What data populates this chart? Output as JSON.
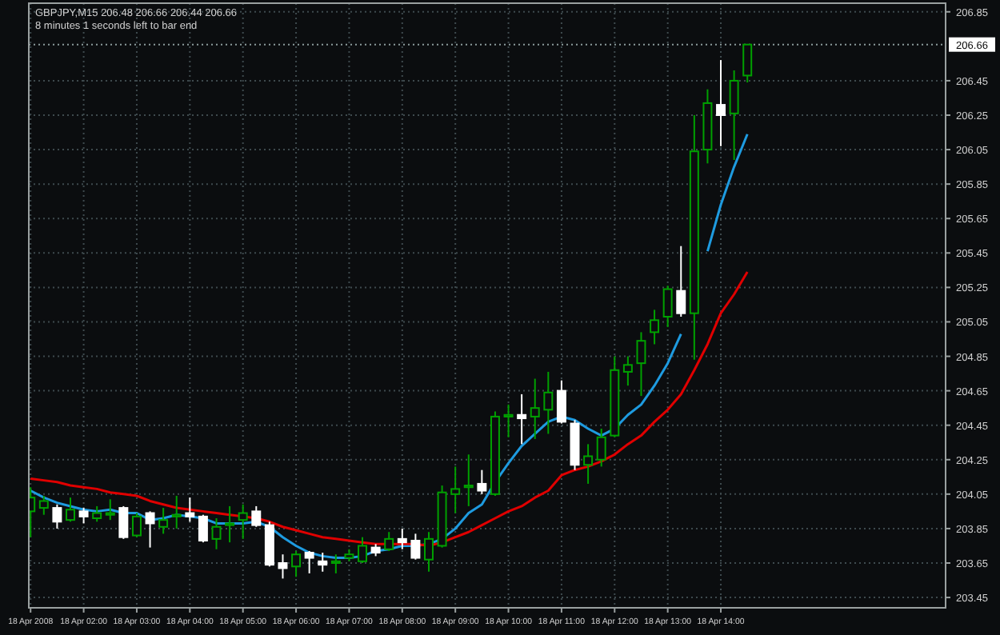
{
  "chart_data": {
    "type": "candlestick",
    "title": "GBPJPY,M15  206.48 206.66 206.44 206.66",
    "subtitle": "8 minutes 1 seconds left to bar end",
    "x": [
      "2008-04-18T01:00",
      "2008-04-18T01:15",
      "2008-04-18T01:30",
      "2008-04-18T01:45",
      "2008-04-18T02:00",
      "2008-04-18T02:15",
      "2008-04-18T02:30",
      "2008-04-18T02:45",
      "2008-04-18T03:00",
      "2008-04-18T03:15",
      "2008-04-18T03:30",
      "2008-04-18T03:45",
      "2008-04-18T04:00",
      "2008-04-18T04:15",
      "2008-04-18T04:30",
      "2008-04-18T04:45",
      "2008-04-18T05:00",
      "2008-04-18T05:15",
      "2008-04-18T05:30",
      "2008-04-18T05:45",
      "2008-04-18T06:00",
      "2008-04-18T06:15",
      "2008-04-18T06:30",
      "2008-04-18T06:45",
      "2008-04-18T07:00",
      "2008-04-18T07:15",
      "2008-04-18T07:30",
      "2008-04-18T07:45",
      "2008-04-18T08:00",
      "2008-04-18T08:15",
      "2008-04-18T08:30",
      "2008-04-18T08:45",
      "2008-04-18T09:00",
      "2008-04-18T09:15",
      "2008-04-18T09:30",
      "2008-04-18T09:45",
      "2008-04-18T10:00",
      "2008-04-18T10:15",
      "2008-04-18T10:30",
      "2008-04-18T10:45",
      "2008-04-18T11:00",
      "2008-04-18T11:15",
      "2008-04-18T11:30",
      "2008-04-18T11:45",
      "2008-04-18T12:00",
      "2008-04-18T12:15",
      "2008-04-18T12:30",
      "2008-04-18T12:45",
      "2008-04-18T13:00",
      "2008-04-18T13:15",
      "2008-04-18T13:30",
      "2008-04-18T13:45",
      "2008-04-18T14:00",
      "2008-04-18T14:15",
      "2008-04-18T14:30"
    ],
    "ohlc": [
      [
        203.95,
        204.09,
        203.8,
        204.03
      ],
      [
        203.97,
        204.04,
        203.93,
        204.01
      ],
      [
        203.97,
        203.99,
        203.85,
        203.89
      ],
      [
        203.9,
        204.03,
        203.89,
        203.96
      ],
      [
        203.95,
        203.97,
        203.88,
        203.92
      ],
      [
        203.91,
        203.98,
        203.89,
        203.94
      ],
      [
        203.93,
        204.02,
        203.9,
        203.94
      ],
      [
        203.97,
        203.98,
        203.79,
        203.8
      ],
      [
        203.81,
        203.94,
        203.8,
        203.92
      ],
      [
        203.94,
        203.95,
        203.74,
        203.88
      ],
      [
        203.86,
        203.97,
        203.82,
        203.9
      ],
      [
        203.92,
        204.04,
        203.85,
        203.93
      ],
      [
        203.94,
        204.03,
        203.89,
        203.92
      ],
      [
        203.92,
        203.93,
        203.77,
        203.78
      ],
      [
        203.79,
        203.91,
        203.73,
        203.86
      ],
      [
        203.87,
        203.98,
        203.77,
        203.88
      ],
      [
        203.9,
        203.99,
        203.79,
        203.94
      ],
      [
        203.95,
        203.98,
        203.86,
        203.87
      ],
      [
        203.87,
        203.89,
        203.63,
        203.64
      ],
      [
        203.65,
        203.7,
        203.56,
        203.62
      ],
      [
        203.63,
        203.72,
        203.57,
        203.7
      ],
      [
        203.71,
        203.72,
        203.59,
        203.68
      ],
      [
        203.66,
        203.71,
        203.6,
        203.64
      ],
      [
        203.65,
        203.7,
        203.59,
        203.66
      ],
      [
        203.68,
        203.73,
        203.66,
        203.7
      ],
      [
        203.66,
        203.8,
        203.65,
        203.75
      ],
      [
        203.74,
        203.76,
        203.69,
        203.71
      ],
      [
        203.73,
        203.83,
        203.72,
        203.79
      ],
      [
        203.79,
        203.85,
        203.73,
        203.77
      ],
      [
        203.78,
        203.82,
        203.67,
        203.68
      ],
      [
        203.67,
        203.83,
        203.6,
        203.79
      ],
      [
        203.75,
        204.1,
        203.74,
        204.06
      ],
      [
        204.05,
        204.21,
        203.94,
        204.08
      ],
      [
        204.09,
        204.28,
        203.98,
        204.1
      ],
      [
        204.11,
        204.19,
        204.05,
        204.07
      ],
      [
        204.05,
        204.53,
        204.04,
        204.5
      ],
      [
        204.5,
        204.57,
        204.38,
        204.51
      ],
      [
        204.51,
        204.63,
        204.34,
        204.49
      ],
      [
        204.5,
        204.72,
        204.37,
        204.55
      ],
      [
        204.54,
        204.76,
        204.4,
        204.64
      ],
      [
        204.65,
        204.71,
        204.46,
        204.47
      ],
      [
        204.46,
        204.48,
        204.19,
        204.22
      ],
      [
        204.22,
        204.34,
        204.11,
        204.27
      ],
      [
        204.25,
        204.43,
        204.21,
        204.38
      ],
      [
        204.39,
        204.85,
        204.38,
        204.77
      ],
      [
        204.76,
        204.85,
        204.68,
        204.8
      ],
      [
        204.81,
        204.99,
        204.62,
        204.94
      ],
      [
        204.99,
        205.12,
        204.92,
        205.06
      ],
      [
        205.08,
        205.26,
        205.02,
        205.24
      ],
      [
        205.23,
        205.49,
        205.08,
        205.1
      ],
      [
        205.1,
        206.25,
        204.83,
        206.04
      ],
      [
        206.05,
        206.4,
        205.97,
        206.32
      ],
      [
        206.31,
        206.57,
        206.07,
        206.25
      ],
      [
        206.26,
        206.51,
        205.99,
        206.45
      ],
      [
        206.48,
        206.66,
        206.44,
        206.66
      ]
    ],
    "colors": [
      "#00a000",
      "#00a000",
      "#ffffff",
      "#00a000",
      "#ffffff",
      "#00a000",
      "#00a000",
      "#ffffff",
      "#00a000",
      "#ffffff",
      "#00a000",
      "#00a000",
      "#ffffff",
      "#ffffff",
      "#00a000",
      "#00a000",
      "#00a000",
      "#ffffff",
      "#ffffff",
      "#ffffff",
      "#00a000",
      "#ffffff",
      "#ffffff",
      "#00a000",
      "#00a000",
      "#00a000",
      "#ffffff",
      "#00a000",
      "#ffffff",
      "#ffffff",
      "#00a000",
      "#00a000",
      "#00a000",
      "#00a000",
      "#ffffff",
      "#00a000",
      "#00a000",
      "#ffffff",
      "#00a000",
      "#00a000",
      "#ffffff",
      "#ffffff",
      "#00a000",
      "#00a000",
      "#00a000",
      "#00a000",
      "#00a000",
      "#00a000",
      "#00a000",
      "#ffffff",
      "#00a000",
      "#00a000",
      "#ffffff",
      "#00a000",
      "#00a000"
    ],
    "series": [
      {
        "type": "line",
        "color": "#1e9be0",
        "values": [
          204.07,
          204.03,
          204.0,
          203.98,
          203.96,
          203.95,
          203.96,
          203.94,
          203.94,
          203.9,
          203.91,
          203.93,
          203.92,
          203.91,
          203.88,
          203.88,
          203.88,
          203.89,
          203.86,
          203.8,
          203.75,
          203.71,
          203.69,
          203.68,
          203.68,
          203.69,
          203.72,
          203.73,
          203.75,
          203.75,
          203.76,
          203.79,
          203.85,
          203.94,
          203.99,
          204.12,
          204.23,
          204.33,
          204.4,
          204.47,
          204.5,
          204.48,
          204.43,
          204.39,
          204.43,
          204.51,
          204.57,
          204.68,
          204.81,
          204.98,
          null,
          205.46,
          205.73,
          205.95,
          206.14
        ]
      },
      {
        "type": "line",
        "color": "#e00000",
        "values": [
          204.14,
          204.13,
          204.12,
          204.1,
          204.09,
          204.08,
          204.06,
          204.05,
          204.04,
          204.01,
          203.99,
          203.97,
          203.96,
          203.95,
          203.94,
          203.93,
          203.92,
          203.91,
          203.89,
          203.86,
          203.84,
          203.82,
          203.8,
          203.79,
          203.78,
          203.77,
          203.76,
          203.76,
          203.76,
          203.76,
          203.75,
          203.77,
          203.8,
          203.83,
          203.87,
          203.91,
          203.95,
          203.98,
          204.03,
          204.07,
          204.16,
          204.19,
          204.21,
          204.24,
          204.28,
          204.34,
          204.39,
          204.47,
          204.54,
          204.63,
          204.77,
          204.92,
          205.1,
          205.21,
          205.34
        ]
      }
    ],
    "xlim": [
      "2008-04-18T00:58",
      "2008-04-18T18:14"
    ],
    "xticks": [
      {
        "value": "2008-04-18T01:00",
        "label": "18 Apr 2008"
      },
      {
        "value": "2008-04-18T02:00",
        "label": "18 Apr 02:00"
      },
      {
        "value": "2008-04-18T03:00",
        "label": "18 Apr 03:00"
      },
      {
        "value": "2008-04-18T04:00",
        "label": "18 Apr 04:00"
      },
      {
        "value": "2008-04-18T05:00",
        "label": "18 Apr 05:00"
      },
      {
        "value": "2008-04-18T06:00",
        "label": "18 Apr 06:00"
      },
      {
        "value": "2008-04-18T07:00",
        "label": "18 Apr 07:00"
      },
      {
        "value": "2008-04-18T08:00",
        "label": "18 Apr 08:00"
      },
      {
        "value": "2008-04-18T09:00",
        "label": "18 Apr 09:00"
      },
      {
        "value": "2008-04-18T10:00",
        "label": "18 Apr 10:00"
      },
      {
        "value": "2008-04-18T11:00",
        "label": "18 Apr 11:00"
      },
      {
        "value": "2008-04-18T12:00",
        "label": "18 Apr 12:00"
      },
      {
        "value": "2008-04-18T13:00",
        "label": "18 Apr 13:00"
      },
      {
        "value": "2008-04-18T14:00",
        "label": "18 Apr 14:00"
      }
    ],
    "ylim": [
      203.39,
      206.9
    ],
    "yticks": [
      203.45,
      203.65,
      203.85,
      204.05,
      204.25,
      204.45,
      204.65,
      204.85,
      205.05,
      205.25,
      205.45,
      205.65,
      205.85,
      206.05,
      206.25,
      206.45,
      206.85
    ],
    "ref_lines": [
      {
        "axis": "y",
        "value": 206.66,
        "label": "206.66",
        "color": "#8a9a9a",
        "line_style": "dotted"
      }
    ],
    "grid": true
  }
}
